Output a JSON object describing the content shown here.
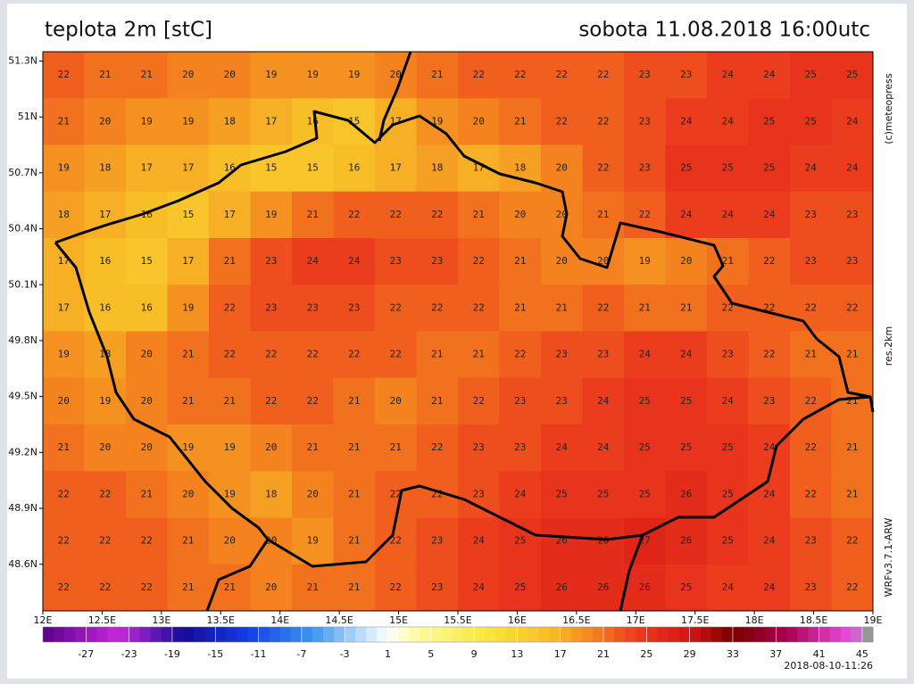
{
  "header": {
    "title": "teplota 2m [stC]",
    "time": "sobota 11.08.2018 16:00utc"
  },
  "map": {
    "xlim": [
      12,
      19
    ],
    "ylim": [
      48.35,
      51.35
    ],
    "xticks": [
      {
        "value": 12,
        "label": "12E"
      },
      {
        "value": 12.5,
        "label": "12.5E"
      },
      {
        "value": 13,
        "label": "13E"
      },
      {
        "value": 13.5,
        "label": "13.5E"
      },
      {
        "value": 14,
        "label": "14E"
      },
      {
        "value": 14.5,
        "label": "14.5E"
      },
      {
        "value": 15,
        "label": "15E"
      },
      {
        "value": 15.5,
        "label": "15.5E"
      },
      {
        "value": 16,
        "label": "16E"
      },
      {
        "value": 16.5,
        "label": "16.5E"
      },
      {
        "value": 17,
        "label": "17E"
      },
      {
        "value": 17.5,
        "label": "17.5E"
      },
      {
        "value": 18,
        "label": "18E"
      },
      {
        "value": 18.5,
        "label": "18.5E"
      },
      {
        "value": 19,
        "label": "19E"
      }
    ],
    "yticks": [
      {
        "value": 51.3,
        "label": "51.3N"
      },
      {
        "value": 51,
        "label": "51N"
      },
      {
        "value": 50.7,
        "label": "50.7N"
      },
      {
        "value": 50.4,
        "label": "50.4N"
      },
      {
        "value": 50.1,
        "label": "50.1N"
      },
      {
        "value": 49.8,
        "label": "49.8N"
      },
      {
        "value": 49.5,
        "label": "49.5N"
      },
      {
        "value": 49.2,
        "label": "49.2N"
      },
      {
        "value": 48.9,
        "label": "48.9N"
      },
      {
        "value": 48.6,
        "label": "48.6N"
      }
    ],
    "temperature": [
      [
        22,
        21,
        21,
        20,
        20,
        19,
        19,
        19,
        20,
        21,
        22,
        22,
        22,
        22,
        23,
        23,
        24,
        24,
        25,
        25
      ],
      [
        21,
        20,
        19,
        19,
        18,
        17,
        16,
        15,
        17,
        19,
        20,
        21,
        22,
        22,
        23,
        24,
        24,
        25,
        25,
        24
      ],
      [
        19,
        18,
        17,
        17,
        16,
        15,
        15,
        16,
        17,
        18,
        17,
        18,
        20,
        22,
        23,
        25,
        25,
        25,
        24,
        24
      ],
      [
        18,
        17,
        16,
        15,
        17,
        19,
        21,
        22,
        22,
        22,
        21,
        20,
        20,
        21,
        22,
        24,
        24,
        24,
        23,
        23
      ],
      [
        17,
        16,
        15,
        17,
        21,
        23,
        24,
        24,
        23,
        23,
        22,
        21,
        20,
        20,
        19,
        20,
        21,
        22,
        23,
        23
      ],
      [
        17,
        16,
        16,
        19,
        22,
        23,
        23,
        23,
        22,
        22,
        22,
        21,
        21,
        22,
        21,
        21,
        22,
        22,
        22,
        22
      ],
      [
        19,
        18,
        20,
        21,
        22,
        22,
        22,
        22,
        22,
        21,
        21,
        22,
        23,
        23,
        24,
        24,
        23,
        22,
        21,
        21
      ],
      [
        20,
        19,
        20,
        21,
        21,
        22,
        22,
        21,
        20,
        21,
        22,
        23,
        23,
        24,
        25,
        25,
        24,
        23,
        22,
        21
      ],
      [
        21,
        20,
        20,
        19,
        19,
        20,
        21,
        21,
        21,
        22,
        23,
        23,
        24,
        24,
        25,
        25,
        25,
        24,
        22,
        21
      ],
      [
        22,
        22,
        21,
        20,
        19,
        18,
        20,
        21,
        22,
        22,
        23,
        24,
        25,
        25,
        25,
        26,
        25,
        24,
        22,
        21
      ],
      [
        22,
        22,
        22,
        21,
        20,
        20,
        19,
        21,
        22,
        23,
        24,
        25,
        26,
        26,
        27,
        26,
        25,
        24,
        23,
        22
      ],
      [
        22,
        22,
        22,
        21,
        21,
        20,
        21,
        21,
        22,
        23,
        24,
        25,
        26,
        26,
        26,
        25,
        24,
        24,
        23,
        22
      ]
    ]
  },
  "colorbar": {
    "range": [
      -31,
      46
    ],
    "ticks": [
      -27,
      -23,
      -19,
      -15,
      -11,
      -7,
      -3,
      1,
      5,
      9,
      13,
      17,
      21,
      25,
      29,
      33,
      37,
      41,
      45
    ]
  },
  "side": {
    "copyright": "(c)meteopress",
    "resolution": "res.2km",
    "model": "WRFv3.7.1-ARW"
  },
  "footer": {
    "run": "2018-08-10-11:26"
  }
}
